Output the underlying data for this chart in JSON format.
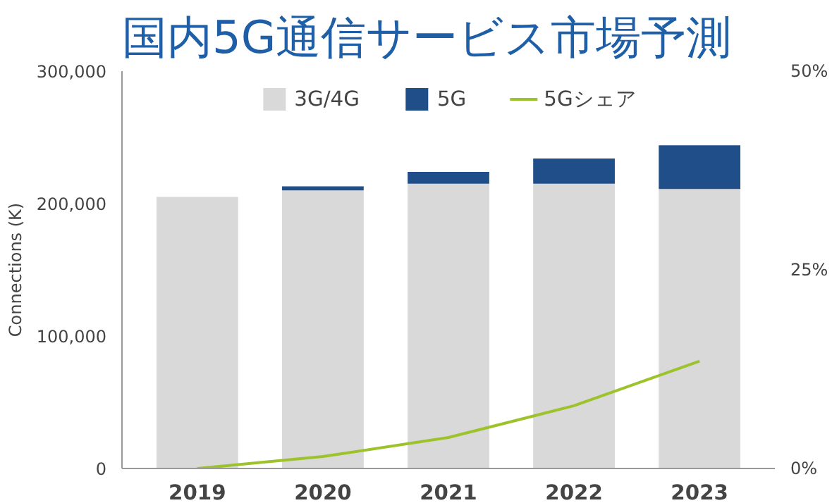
{
  "chart_data": {
    "type": "bar",
    "title": "国内5G通信サービス市場予測",
    "ylabel": "Connections (K)",
    "stacked": true,
    "categories": [
      "2019",
      "2020",
      "2021",
      "2022",
      "2023"
    ],
    "series": [
      {
        "name": "3G/4G",
        "color": "#d9d9d9",
        "values": [
          205000,
          210000,
          215000,
          215000,
          211000
        ]
      },
      {
        "name": "5G",
        "color": "#1f4e89",
        "values": [
          0,
          3000,
          9000,
          19000,
          33000
        ]
      },
      {
        "name": "5Gシェア",
        "type": "line",
        "axis": "y2",
        "color": "#9dc32c",
        "values": [
          0,
          1.5,
          3.9,
          7.9,
          13.5
        ]
      }
    ],
    "ylim": [
      0,
      300000
    ],
    "yticks": [
      {
        "value": 0,
        "label": "0"
      },
      {
        "value": 100000,
        "label": "100,000"
      },
      {
        "value": 200000,
        "label": "200,000"
      },
      {
        "value": 300000,
        "label": "300,000"
      }
    ],
    "y2lim": [
      0,
      50
    ],
    "y2ticks": [
      {
        "value": 0,
        "label": "0%"
      },
      {
        "value": 25,
        "label": "25%"
      },
      {
        "value": 50,
        "label": "50%"
      }
    ],
    "legend": "top",
    "grid": false
  }
}
